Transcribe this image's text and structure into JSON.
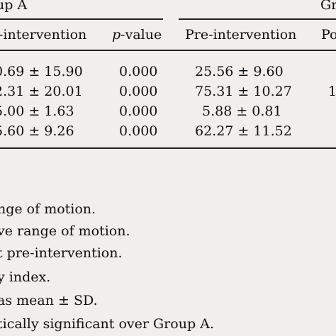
{
  "table": {
    "group_a": "up A",
    "group_b": "Gr",
    "pvalue_italic": "p",
    "pvalue_rest": "-value",
    "columns": [
      "-intervention",
      "p-value",
      "Pre-intervention",
      "Po"
    ],
    "rows": [
      [
        "0.69 ± 15.90",
        "0.000",
        "25.56 ± 9.60",
        ""
      ],
      [
        "2.31 ± 20.01",
        "0.000",
        "75.31 ± 10.27",
        "1"
      ],
      [
        "5.00 ± 1.63",
        "0.000",
        "5.88 ± 0.81",
        ""
      ],
      [
        "5.60 ± 9.26",
        "0.000",
        "62.27 ± 11.52",
        ""
      ]
    ]
  },
  "footnotes": [
    "nge of motion.",
    "ve range of motion.",
    "t pre-intervention.",
    "y index.",
    "as mean ± SD.",
    "tically significant over Group A."
  ]
}
